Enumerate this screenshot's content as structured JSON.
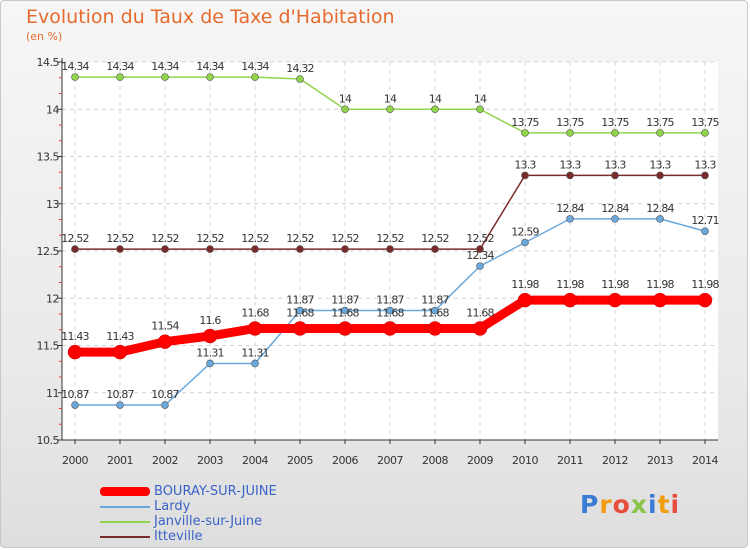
{
  "header": {
    "title": "Evolution du Taux de Taxe d'Habitation",
    "subtitle": "(en %)"
  },
  "logo": {
    "text": "Proxiti"
  },
  "chart_data": {
    "type": "line",
    "title": "Evolution du Taux de Taxe d'Habitation",
    "subtitle": "(en %)",
    "categories": [
      "2000",
      "2001",
      "2002",
      "2003",
      "2004",
      "2005",
      "2006",
      "2007",
      "2008",
      "2009",
      "2010",
      "2011",
      "2012",
      "2013",
      "2014"
    ],
    "ylim": [
      10.5,
      14.5
    ],
    "yticks": [
      10.5,
      11,
      11.5,
      12,
      12.5,
      13,
      13.5,
      14,
      14.5
    ],
    "ytick_labels": [
      "10.5",
      "11",
      "11.5",
      "12",
      "12.5",
      "13",
      "13.5",
      "14",
      "14.5"
    ],
    "grid": true,
    "legend_position": "bottom-left",
    "series": [
      {
        "name": "BOURAY-SUR-JUINE",
        "color": "#ff0000",
        "values": [
          11.43,
          11.43,
          11.54,
          11.6,
          11.68,
          11.68,
          11.68,
          11.68,
          11.68,
          11.68,
          11.98,
          11.98,
          11.98,
          11.98,
          11.98
        ],
        "labels": [
          "11.43",
          "11.43",
          "11.54",
          "11.6",
          "11.68",
          "11.68",
          "11.68",
          "11.68",
          "11.68",
          "11.68",
          "11.98",
          "11.98",
          "11.98",
          "11.98",
          "11.98"
        ]
      },
      {
        "name": "Lardy",
        "color": "#6aa8dc",
        "values": [
          10.87,
          10.87,
          10.87,
          11.31,
          11.31,
          11.87,
          11.87,
          11.87,
          11.87,
          12.34,
          12.59,
          12.84,
          12.84,
          12.84,
          12.71
        ],
        "labels": [
          "10.87",
          "10.87",
          "10.87",
          "11.31",
          "11.31",
          "11.87",
          "11.87",
          "11.87",
          "11.87",
          "12.34",
          "12.59",
          "12.84",
          "12.84",
          "12.84",
          "12.71"
        ]
      },
      {
        "name": "Janville-sur-Juine",
        "color": "#8fd44a",
        "values": [
          14.34,
          14.34,
          14.34,
          14.34,
          14.34,
          14.32,
          14,
          14,
          14,
          14,
          13.75,
          13.75,
          13.75,
          13.75,
          13.75
        ],
        "labels": [
          "14.34",
          "14.34",
          "14.34",
          "14.34",
          "14.34",
          "14.32",
          "14",
          "14",
          "14",
          "14",
          "13.75",
          "13.75",
          "13.75",
          "13.75",
          "13.75"
        ]
      },
      {
        "name": "Itteville",
        "color": "#7a2a2a",
        "values": [
          12.52,
          12.52,
          12.52,
          12.52,
          12.52,
          12.52,
          12.52,
          12.52,
          12.52,
          12.52,
          13.3,
          13.3,
          13.3,
          13.3,
          13.3
        ],
        "labels": [
          "12.52",
          "12.52",
          "12.52",
          "12.52",
          "12.52",
          "12.52",
          "12.52",
          "12.52",
          "12.52",
          "12.52",
          "13.3",
          "13.3",
          "13.3",
          "13.3",
          "13.3"
        ]
      }
    ]
  }
}
